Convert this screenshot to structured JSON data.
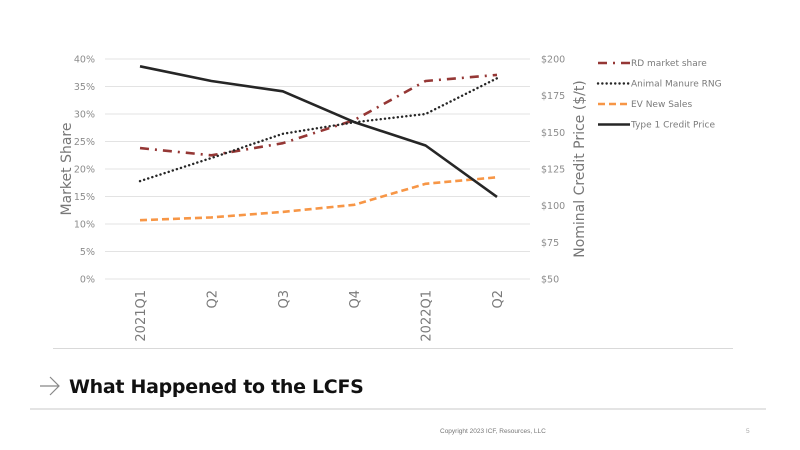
{
  "chart_data": {
    "type": "line",
    "categories": [
      "2021Q1",
      "Q2",
      "Q3",
      "Q4",
      "2022Q1",
      "Q2"
    ],
    "ylabel": "Market Share",
    "y2label": "Nominal Credit Price ($/t)",
    "ylim": [
      0,
      40
    ],
    "y2lim": [
      50,
      200
    ],
    "yticks": [
      "0%",
      "5%",
      "10%",
      "15%",
      "20%",
      "25%",
      "30%",
      "35%",
      "40%"
    ],
    "y2ticks": [
      "$50",
      "$75",
      "$100",
      "$125",
      "$150",
      "$175",
      "$200"
    ],
    "grid": true,
    "legend_position": "top-right",
    "series": [
      {
        "name": "RD market share",
        "axis": "left",
        "color": "#953735",
        "style": "dash-dot",
        "values": [
          23.8,
          22.5,
          24.7,
          28.9,
          36.0,
          37.1
        ]
      },
      {
        "name": "Animal Manure RNG",
        "axis": "left",
        "color": "#262626",
        "style": "dotted",
        "values": [
          17.8,
          22.0,
          26.4,
          28.5,
          30.0,
          36.5
        ]
      },
      {
        "name": "EV New Sales",
        "axis": "left",
        "color": "#f79646",
        "style": "dashed",
        "values": [
          10.7,
          11.2,
          12.2,
          13.5,
          17.3,
          18.5
        ]
      },
      {
        "name": "Type 1 Credit Price",
        "axis": "right",
        "color": "#262626",
        "style": "solid",
        "values": [
          195,
          185,
          178,
          157,
          141,
          106
        ]
      }
    ]
  },
  "slide": {
    "title": "What Happened to the LCFS",
    "copyright": "Copyright 2023 ICF, Resources, LLC",
    "page_number": "5"
  }
}
